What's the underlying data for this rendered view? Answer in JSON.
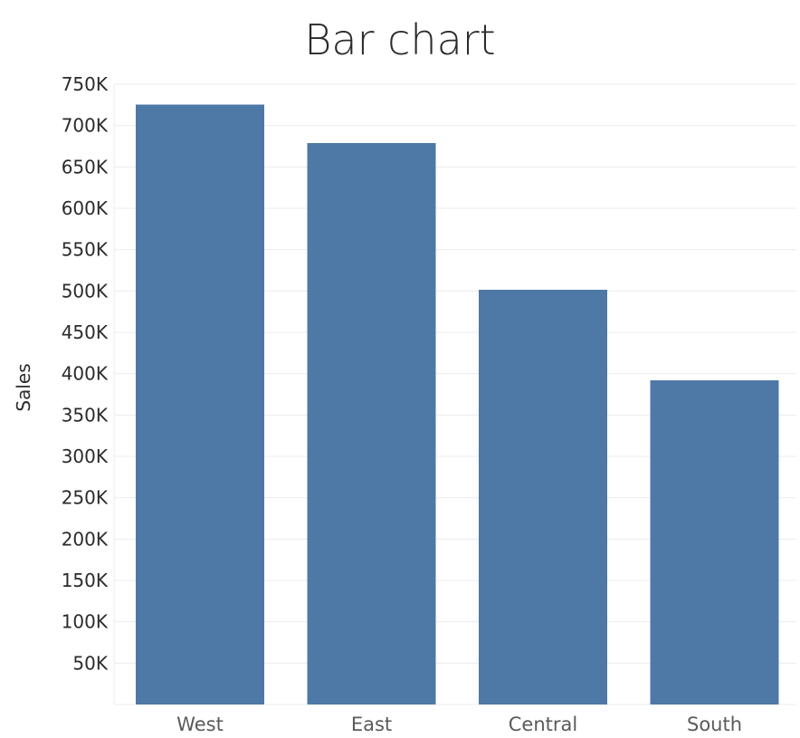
{
  "chart_data": {
    "type": "bar",
    "title": "Bar chart",
    "xlabel": "",
    "ylabel": "Sales",
    "categories": [
      "West",
      "East",
      "Central",
      "South"
    ],
    "values": [
      725458,
      678781,
      501240,
      391722
    ],
    "ylim": [
      0,
      750000
    ],
    "yticks": [
      50000,
      100000,
      150000,
      200000,
      250000,
      300000,
      350000,
      400000,
      450000,
      500000,
      550000,
      600000,
      650000,
      700000,
      750000
    ],
    "ytick_labels": [
      "50K",
      "100K",
      "150K",
      "200K",
      "250K",
      "300K",
      "350K",
      "400K",
      "450K",
      "500K",
      "550K",
      "600K",
      "650K",
      "700K",
      "750K"
    ],
    "grid": true,
    "legend": "none",
    "bar_color": "#4e79a7"
  }
}
